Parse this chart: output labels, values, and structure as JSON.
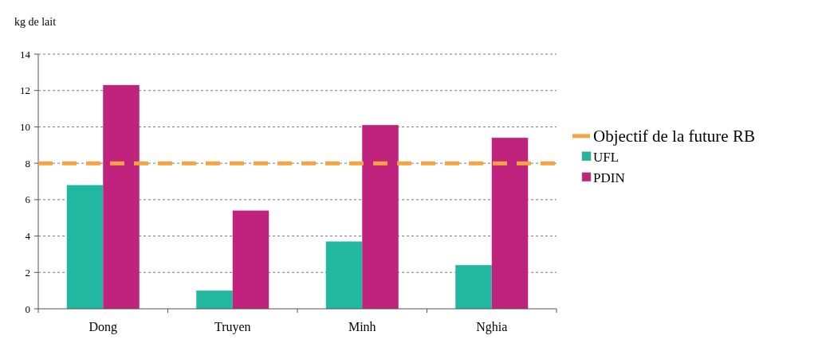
{
  "chart_data": {
    "type": "bar",
    "ylabel": "kg de lait",
    "categories": [
      "Dong",
      "Truyen",
      "Minh",
      "Nghia"
    ],
    "series": [
      {
        "name": "UFL",
        "color": "#20b8a0",
        "values": [
          6.8,
          1.0,
          3.7,
          2.4
        ]
      },
      {
        "name": "PDIN",
        "color": "#c0237e",
        "values": [
          12.3,
          5.4,
          10.1,
          9.4
        ]
      }
    ],
    "ref_lines": [
      {
        "axis": "y",
        "value": 8,
        "label": "Objectif de la future RB",
        "color": "#f5a442",
        "line_style": "dashed"
      }
    ],
    "ylim": [
      0,
      14
    ],
    "yticks": [
      0,
      2,
      4,
      6,
      8,
      10,
      12,
      14
    ],
    "grid": "y",
    "legend": "right"
  }
}
